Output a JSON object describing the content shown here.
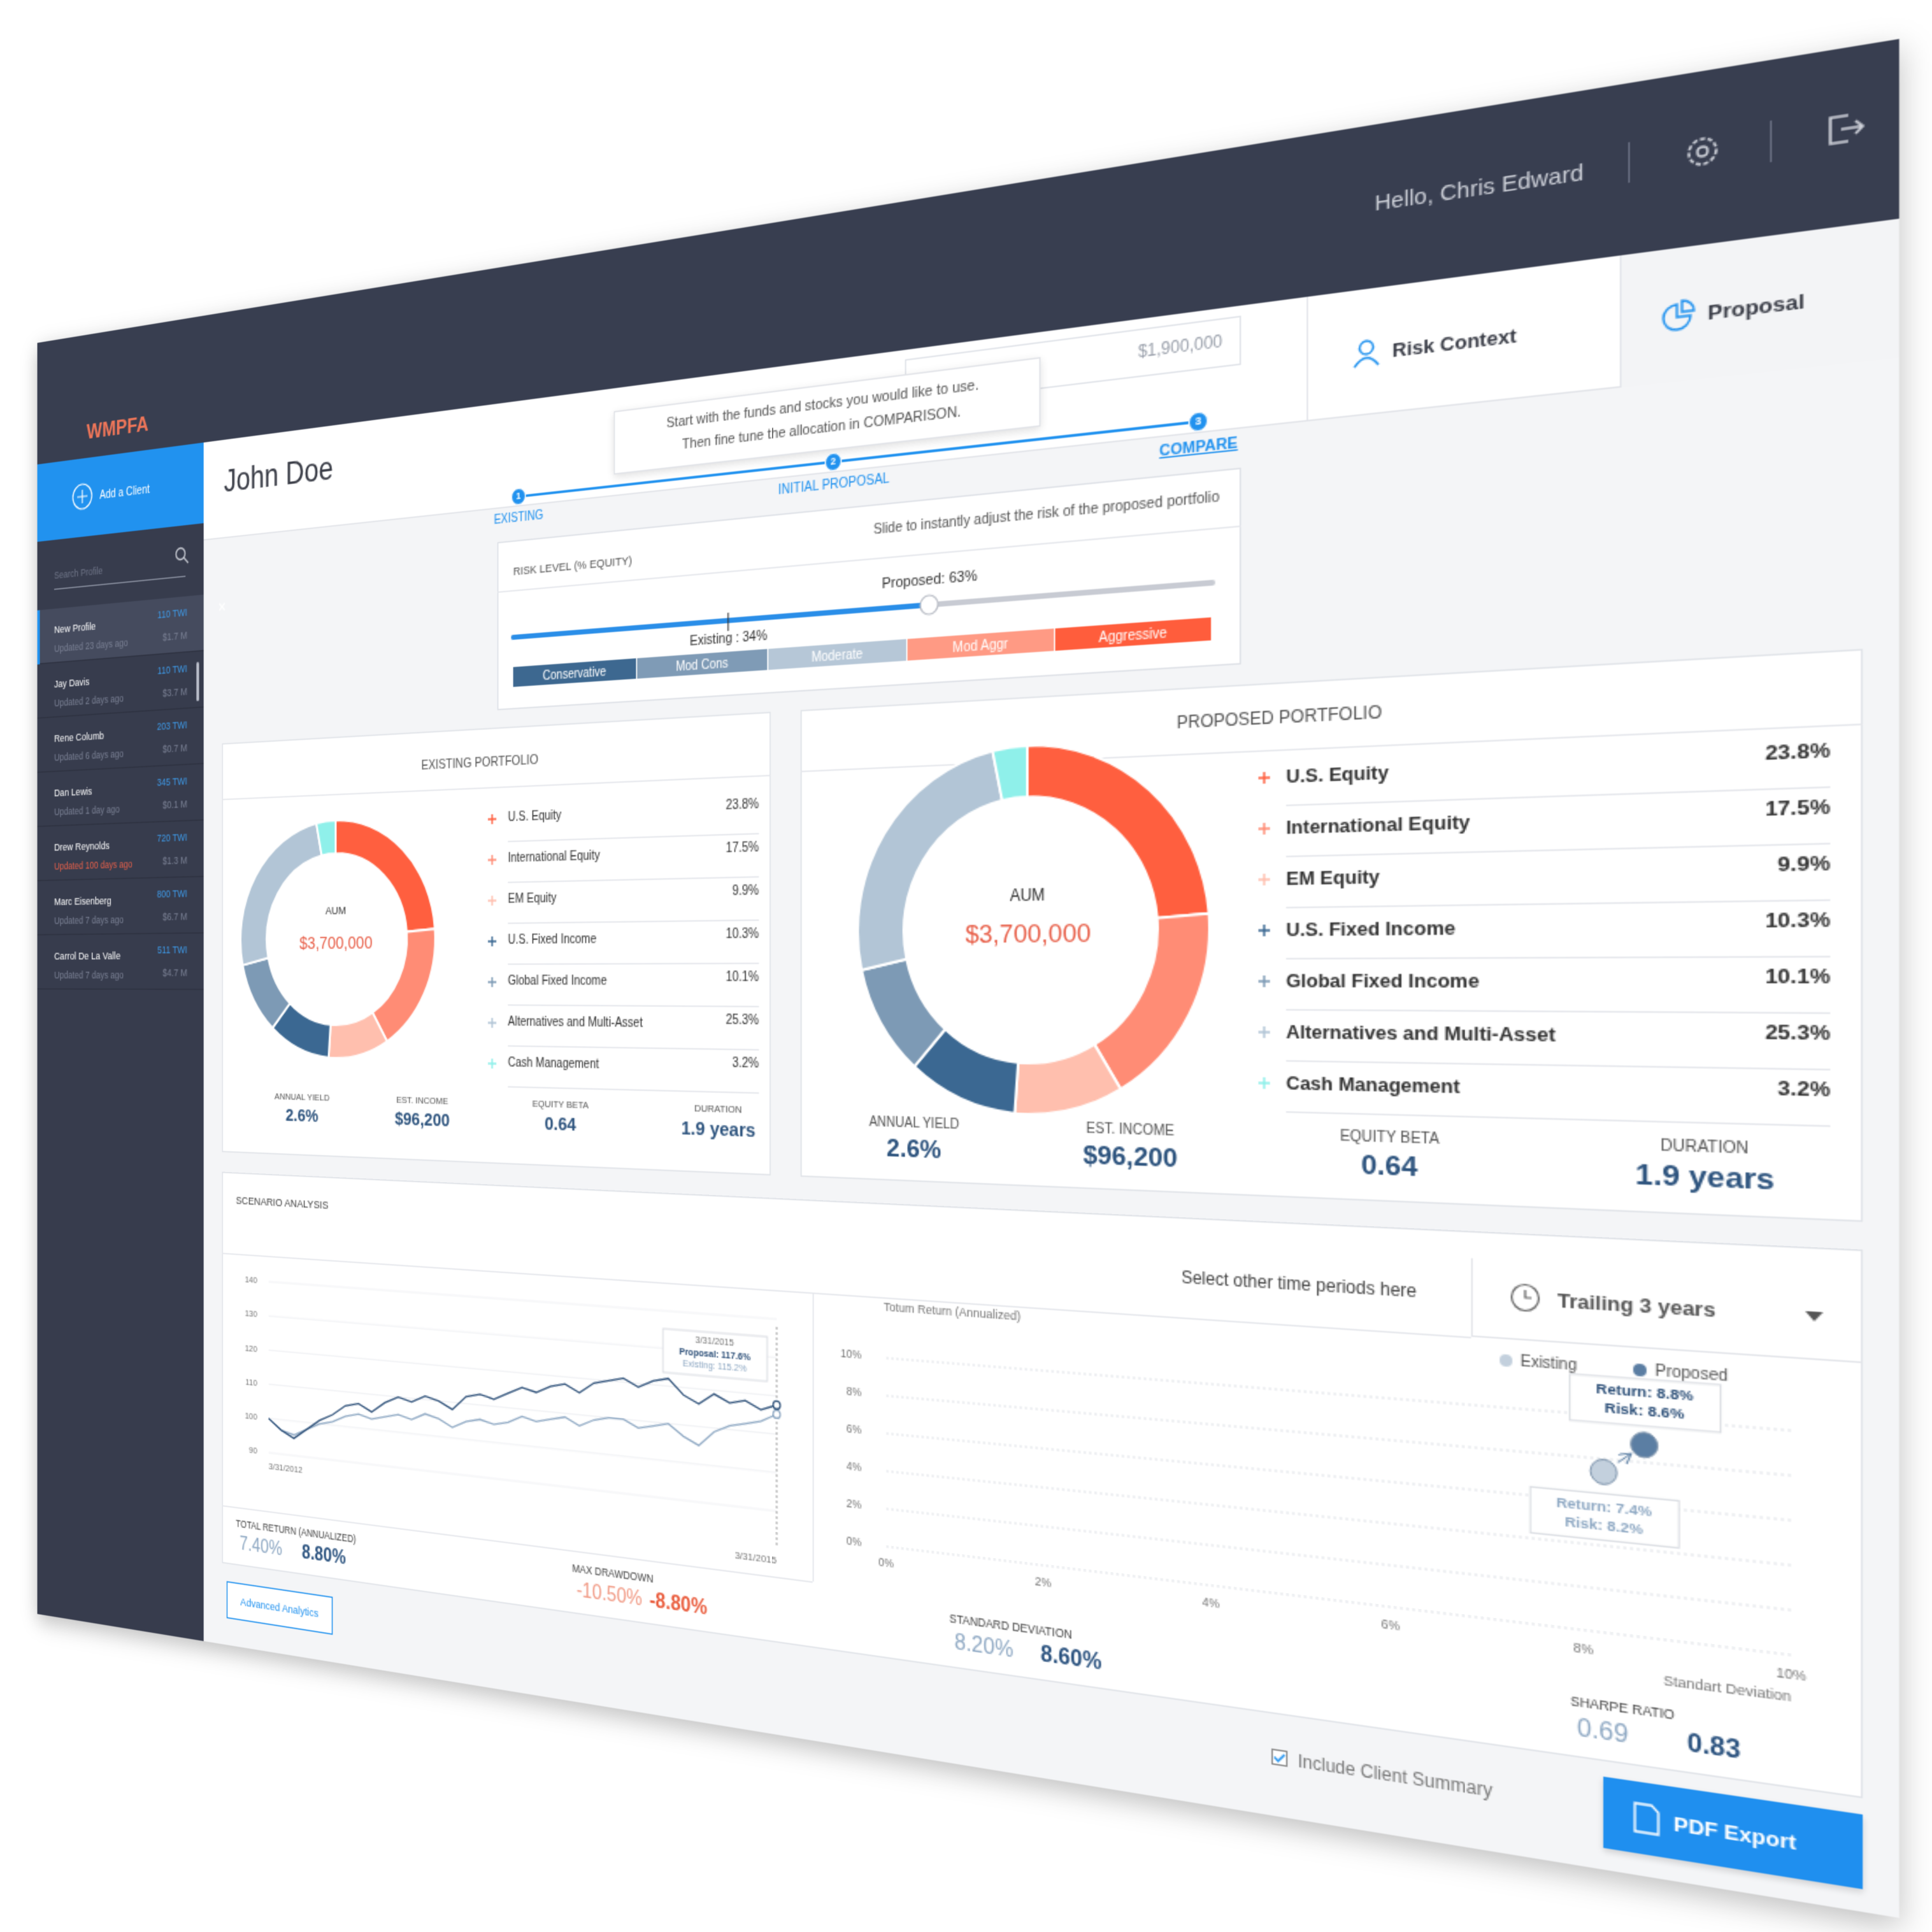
{
  "header": {
    "logo": "WMPFA",
    "greeting": "Hello, Chris Edward",
    "tabs": [
      "Risk Context",
      "Proposal"
    ]
  },
  "sidebar": {
    "add_client": "Add a Client",
    "search_placeholder": "Search Profile",
    "clients": [
      {
        "name": "New Profile",
        "code": "110 TWI",
        "updated": "Updated 23 days ago",
        "aum": "$1.7 M"
      },
      {
        "name": "Jay Davis",
        "code": "110 TWI",
        "updated": "Updated 2 days  ago",
        "aum": "$3.7 M"
      },
      {
        "name": "Rene Columb",
        "code": "203 TWI",
        "updated": "Updated 6 days ago",
        "aum": "$0.7 M"
      },
      {
        "name": "Dan Lewis",
        "code": "345 TWI",
        "updated": "Updated 1 day ago",
        "aum": "$0.1 M"
      },
      {
        "name": "Drew Reynolds",
        "code": "720 TWI",
        "updated": "Updated 100 days ago",
        "aum": "$1.3 M",
        "status_color": "#e8604a"
      },
      {
        "name": "Marc Eisenberg",
        "code": "800 TWI",
        "updated": "Updated 7 days ago",
        "aum": "$6.7 M"
      },
      {
        "name": "Carrol De La Valle",
        "code": "511 TWI",
        "updated": "Updated 7 days ago",
        "aum": "$4.7 M"
      }
    ]
  },
  "client": {
    "name": "John Doe",
    "aum_label": "AUM",
    "aum": "$1,900,000"
  },
  "tooltip": [
    "Start with the funds and stocks you would like to use.",
    "Then fine tune the allocation in COMPARISON."
  ],
  "steps": [
    {
      "number": 1,
      "label": "EXISTING"
    },
    {
      "number": 2,
      "label": "INITIAL PROPOSAL"
    },
    {
      "number": 3,
      "label": "COMPARE"
    }
  ],
  "risk": {
    "title": "RISK LEVEL (% EQUITY)",
    "hint": "Slide to instantly adjust the risk of the proposed portfolio",
    "existing": 34,
    "existing_label": "Existing : 34%",
    "proposed": 63,
    "proposed_label": "Proposed: 63%",
    "bands": [
      {
        "name": "Conservative",
        "color": "#3d6890"
      },
      {
        "name": "Mod Cons",
        "color": "#7f9bb6"
      },
      {
        "name": "Moderate",
        "color": "#b6c7d7"
      },
      {
        "name": "Mod Aggr",
        "color": "#ff9a84"
      },
      {
        "name": "Aggressive",
        "color": "#ff5d3c"
      }
    ]
  },
  "portfolios": [
    {
      "title": "EXISTING PORTFOLIO",
      "center_label": "AUM",
      "center_value": "$3,700,000",
      "holdings": [
        {
          "name": "U.S. Equity",
          "color": "#ff5f3f",
          "value": 23.8,
          "value_label": "23.8%"
        },
        {
          "name": "International Equity",
          "color": "#ff8c75",
          "value": 17.5,
          "value_label": "17.5%"
        },
        {
          "name": "EM Equity",
          "color": "#ffbfae",
          "value": 9.9,
          "value_label": "9.9%"
        },
        {
          "name": "U.S. Fixed Income",
          "color": "#3b6892",
          "value": 10.3,
          "value_label": "10.3%"
        },
        {
          "name": "Global Fixed Income",
          "color": "#7d9ab5",
          "value": 10.1,
          "value_label": "10.1%"
        },
        {
          "name": "Alternatives and Multi-Asset",
          "color": "#b2c5d6",
          "value": 25.3,
          "value_label": "25.3%"
        },
        {
          "name": "Cash Management",
          "color": "#8ff0ea",
          "value": 3.2,
          "value_label": "3.2%"
        }
      ],
      "metrics": [
        {
          "label": "ANNUAL YIELD",
          "value": "2.6%"
        },
        {
          "label": "EST. INCOME",
          "value": "$96,200"
        },
        {
          "label": "EQUITY BETA",
          "value": "0.64"
        },
        {
          "label": "DURATION",
          "value": "1.9 years"
        }
      ]
    },
    {
      "title": "PROPOSED PORTFOLIO",
      "center_label": "AUM",
      "center_value": "$3,700,000",
      "holdings": [
        {
          "name": "U.S. Equity",
          "color": "#ff5f3f",
          "value": 23.8,
          "value_label": "23.8%"
        },
        {
          "name": "International Equity",
          "color": "#ff8c75",
          "value": 17.5,
          "value_label": "17.5%"
        },
        {
          "name": "EM Equity",
          "color": "#ffbfae",
          "value": 9.9,
          "value_label": "9.9%"
        },
        {
          "name": "U.S. Fixed Income",
          "color": "#3b6892",
          "value": 10.3,
          "value_label": "10.3%"
        },
        {
          "name": "Global Fixed Income",
          "color": "#7d9ab5",
          "value": 10.1,
          "value_label": "10.1%"
        },
        {
          "name": "Alternatives and Multi-Asset",
          "color": "#b2c5d6",
          "value": 25.3,
          "value_label": "25.3%"
        },
        {
          "name": "Cash Management",
          "color": "#8ff0ea",
          "value": 3.2,
          "value_label": "3.2%"
        }
      ],
      "metrics": [
        {
          "label": "ANNUAL YIELD",
          "value": "2.6%"
        },
        {
          "label": "EST. INCOME",
          "value": "$96,200"
        },
        {
          "label": "EQUITY BETA",
          "value": "0.64"
        },
        {
          "label": "DURATION",
          "value": "1.9 years"
        }
      ]
    }
  ],
  "scenario": {
    "title": "SCENARIO ANALYSIS",
    "period_hint": "Select other time periods here",
    "period": "Trailing 3 years",
    "stats": [
      {
        "label": "TOTAL RETURN (ANNUALIZED)",
        "existing": "7.40%",
        "proposed": "8.80%"
      },
      {
        "label": "MAX DRAWDOWN",
        "existing": "-10.50%",
        "proposed": "-8.80%"
      },
      {
        "label": "STANDARD DEVIATION",
        "existing": "8.20%",
        "proposed": "8.60%"
      },
      {
        "label": "SHARPE RATIO",
        "existing": "0.69",
        "proposed": "0.83"
      }
    ]
  },
  "chart_data": [
    {
      "type": "line",
      "categories": [
        "3/31/2012",
        null,
        null,
        null,
        null,
        null,
        null,
        null,
        null,
        null,
        null,
        null,
        null,
        null,
        null,
        null,
        null,
        null,
        null,
        null,
        null,
        null,
        null,
        null,
        null,
        null,
        null,
        null,
        null,
        null,
        null,
        null,
        null,
        null,
        null,
        null,
        "3/31/2015"
      ],
      "ylim": [
        90,
        140
      ],
      "yticks": [
        90,
        100,
        110,
        120,
        130,
        140
      ],
      "grid": true,
      "series": [
        {
          "color": "#2c4f78",
          "values": [
            100,
            97,
            95,
            98,
            101,
            103,
            106,
            107,
            105,
            108,
            110,
            109,
            111,
            110,
            108,
            112,
            113,
            112,
            114,
            116,
            115,
            117,
            118,
            116,
            119,
            120,
            121,
            119,
            121,
            122,
            118,
            116,
            119,
            117,
            118,
            116,
            117.6
          ]
        },
        {
          "color": "#8ea8c3",
          "values": [
            100,
            97,
            96,
            98,
            100,
            101,
            103,
            104,
            103,
            104,
            105,
            104,
            106,
            105,
            103,
            105,
            106,
            105,
            106,
            108,
            107,
            108,
            109,
            107,
            109,
            110,
            110,
            108,
            109,
            110,
            107,
            105,
            109,
            111,
            112,
            113,
            115.2
          ]
        }
      ],
      "tooltip": {
        "date": "3/31/2015",
        "lines": [
          "Proposal: 117.6%",
          "Existing: 115.2%"
        ]
      }
    },
    {
      "type": "scatter",
      "y_label": "Totum Return (Annualized)",
      "x_label": "Standart Deviation",
      "legend": "upper right",
      "xlim": [
        0,
        10
      ],
      "ylim": [
        0,
        10
      ],
      "grid": true,
      "xticks": [
        {
          "value": 0,
          "label": "0%"
        },
        {
          "value": 2,
          "label": "2%"
        },
        {
          "value": 4,
          "label": "4%"
        },
        {
          "value": 6,
          "label": "6%"
        },
        {
          "value": 8,
          "label": "8%"
        },
        {
          "value": 10,
          "label": "10%"
        }
      ],
      "yticks": [
        {
          "value": 0,
          "label": "0%"
        },
        {
          "value": 2,
          "label": "2%"
        },
        {
          "value": 4,
          "label": "4%"
        },
        {
          "value": 6,
          "label": "6%"
        },
        {
          "value": 8,
          "label": "8%"
        },
        {
          "value": 10,
          "label": "10%"
        }
      ],
      "series": [
        {
          "name": "Existing",
          "color": "#c3d0dd",
          "x": [
            8.2
          ],
          "values": [
            7.4
          ],
          "value_labels": [
            "Return: 7.4%"
          ],
          "x_labels": [
            "Risk: 8.2%"
          ]
        },
        {
          "name": "Proposed",
          "color": "#5b7ea3",
          "x": [
            8.6
          ],
          "values": [
            8.8
          ],
          "value_labels": [
            "Return: 8.8%"
          ],
          "x_labels": [
            "Risk: 8.6%"
          ]
        }
      ]
    }
  ],
  "footer": {
    "advanced": "Advanced Analytics",
    "include_summary": "Include Client Summary",
    "export": "PDF Export"
  }
}
